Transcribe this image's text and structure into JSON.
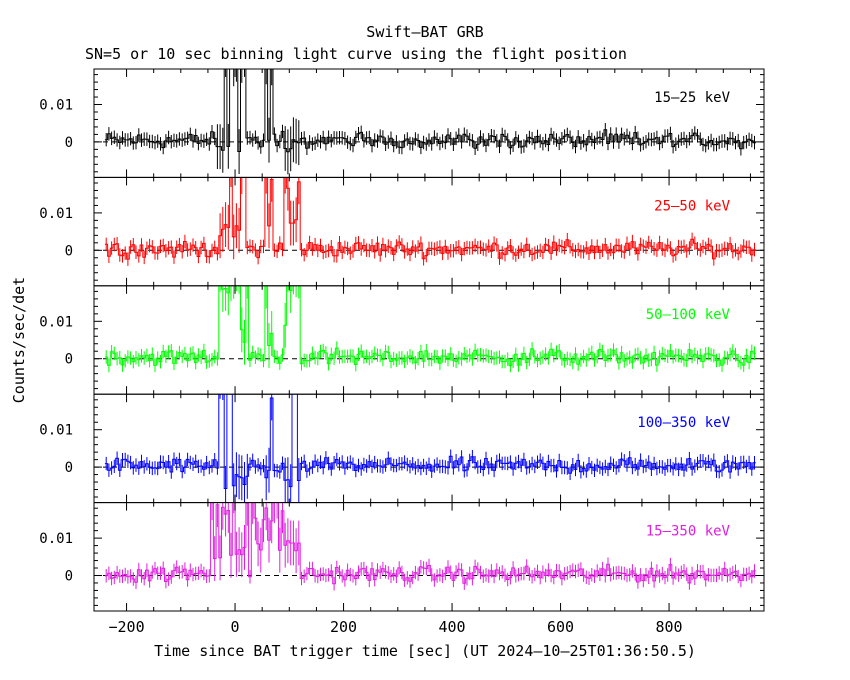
{
  "title": "Swift–BAT GRB",
  "subtitle": "SN=5 or 10 sec binning light curve using the flight position",
  "ylabel": "Counts/sec/det",
  "xlabel": "Time since BAT trigger time [sec] (UT 2024–10–25T01:36:50.5)",
  "chart_data": {
    "type": "line",
    "x_range": [
      -260,
      975
    ],
    "x_ticks": [
      -200,
      0,
      200,
      400,
      600,
      800
    ],
    "x_tick_labels": [
      "−200",
      "0",
      "200",
      "400",
      "600",
      "800"
    ],
    "y_range": [
      -0.0095,
      0.0195
    ],
    "y_ticks": [
      0,
      0.01
    ],
    "y_tick_labels": [
      "0",
      "0.01"
    ],
    "baseline": 0,
    "panels": [
      {
        "name": "15–25 keV",
        "color": "#000000",
        "bursts": [
          {
            "start": -35,
            "end": 18,
            "peak": 0.026,
            "base": -0.004
          },
          {
            "start": 55,
            "end": 70,
            "peak": 0.022,
            "base": -0.002
          },
          {
            "start": 88,
            "end": 118,
            "peak": 0.026,
            "base": -0.003
          }
        ]
      },
      {
        "name": "25–50 keV",
        "color": "#ff0000",
        "bursts": [
          {
            "start": -30,
            "end": 20,
            "peak": 0.022,
            "base": 0.003
          },
          {
            "start": 55,
            "end": 72,
            "peak": 0.02,
            "base": 0.004
          },
          {
            "start": 90,
            "end": 118,
            "peak": 0.02,
            "base": 0.005
          }
        ]
      },
      {
        "name": "50–100 keV",
        "color": "#00ff00",
        "bursts": [
          {
            "start": -28,
            "end": 25,
            "peak": 0.022,
            "base": 0.004
          },
          {
            "start": 55,
            "end": 68,
            "peak": 0.021,
            "base": 0.003
          },
          {
            "start": 88,
            "end": 118,
            "peak": 0.022,
            "base": 0.006
          }
        ]
      },
      {
        "name": "100–350 keV",
        "color": "#0000ff",
        "bursts": [
          {
            "start": -28,
            "end": 25,
            "peak": 0.024,
            "base": -0.006
          },
          {
            "start": 55,
            "end": 68,
            "peak": 0.02,
            "base": -0.004
          },
          {
            "start": 88,
            "end": 118,
            "peak": 0.024,
            "base": -0.007
          }
        ]
      },
      {
        "name": "15–350 keV",
        "color": "#e020e0",
        "bursts": [
          {
            "start": -45,
            "end": 25,
            "peak": 0.02,
            "base": 0.004
          },
          {
            "start": 30,
            "end": 118,
            "peak": 0.018,
            "base": 0.006
          }
        ]
      }
    ]
  }
}
